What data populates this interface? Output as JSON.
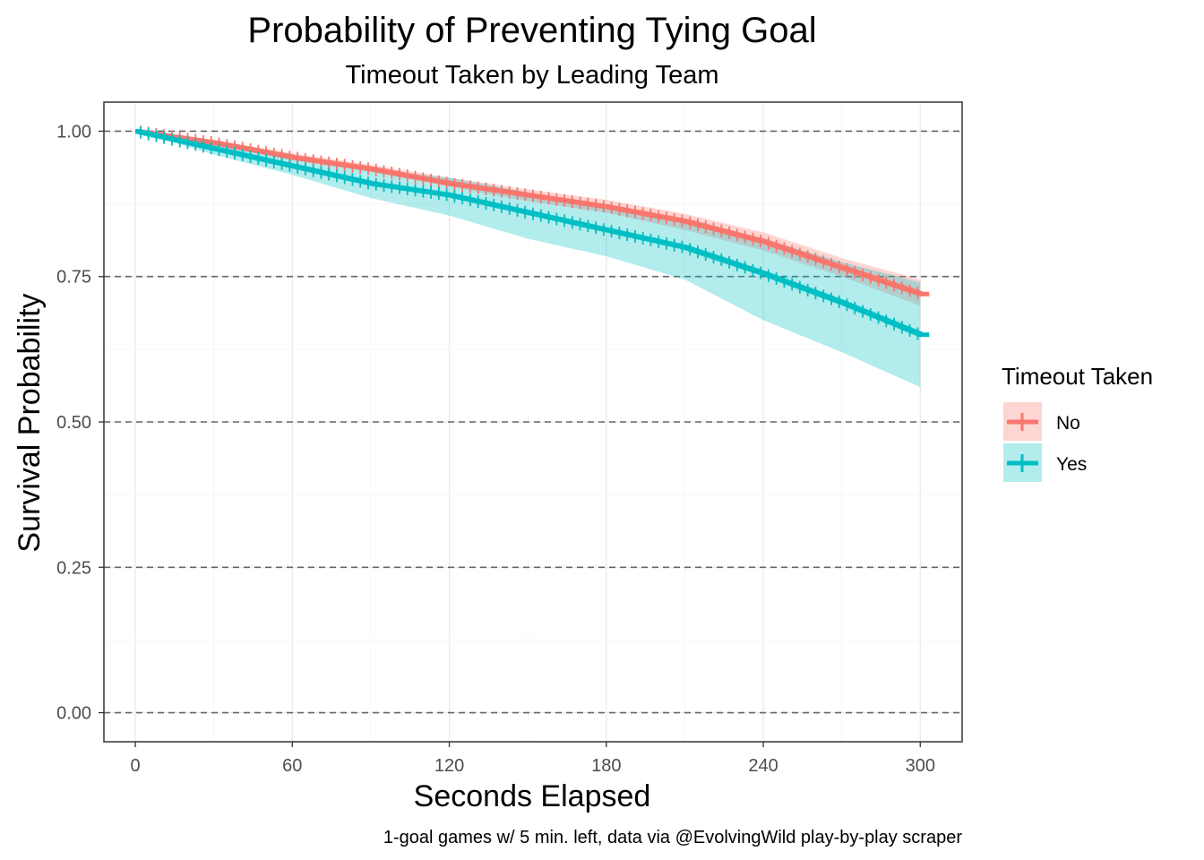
{
  "chart_data": {
    "type": "line",
    "title": "Probability of Preventing Tying Goal",
    "subtitle": "Timeout Taken by Leading Team",
    "xlabel": "Seconds Elapsed",
    "ylabel": "Survival Probability",
    "caption": "1-goal games w/ 5 min. left, data via @EvolvingWild play-by-play scraper",
    "xlim": [
      -12,
      316
    ],
    "ylim": [
      -0.05,
      1.05
    ],
    "x_ticks": [
      0,
      60,
      120,
      180,
      240,
      300
    ],
    "x_tick_labels": [
      "0",
      "60",
      "120",
      "180",
      "240",
      "300"
    ],
    "y_ticks": [
      0,
      0.25,
      0.5,
      0.75,
      1.0
    ],
    "y_tick_labels": [
      "0.00",
      "0.25",
      "0.50",
      "0.75",
      "1.00"
    ],
    "grid": true,
    "reference_lines_y": [
      0,
      0.25,
      0.5,
      0.75,
      1.0
    ],
    "legend": {
      "title": "Timeout Taken",
      "position": "right",
      "entries": [
        "No",
        "Yes"
      ]
    },
    "series": [
      {
        "name": "No",
        "color": "#F8766D",
        "x": [
          0,
          30,
          60,
          90,
          120,
          150,
          180,
          210,
          240,
          270,
          300
        ],
        "y": [
          1.0,
          0.98,
          0.955,
          0.935,
          0.91,
          0.89,
          0.87,
          0.845,
          0.81,
          0.765,
          0.72
        ],
        "lower": [
          1.0,
          0.975,
          0.95,
          0.93,
          0.905,
          0.88,
          0.86,
          0.83,
          0.795,
          0.75,
          0.7
        ],
        "upper": [
          1.0,
          0.985,
          0.962,
          0.942,
          0.92,
          0.9,
          0.882,
          0.858,
          0.826,
          0.782,
          0.745
        ]
      },
      {
        "name": "Yes",
        "color": "#00BFC4",
        "x": [
          0,
          30,
          60,
          90,
          120,
          150,
          180,
          210,
          240,
          270,
          300
        ],
        "y": [
          1.0,
          0.97,
          0.94,
          0.91,
          0.89,
          0.86,
          0.83,
          0.8,
          0.755,
          0.705,
          0.65
        ],
        "lower": [
          1.0,
          0.96,
          0.925,
          0.885,
          0.855,
          0.815,
          0.785,
          0.745,
          0.675,
          0.62,
          0.56
        ],
        "upper": [
          1.0,
          0.985,
          0.96,
          0.935,
          0.92,
          0.895,
          0.87,
          0.85,
          0.815,
          0.775,
          0.74
        ]
      }
    ]
  }
}
